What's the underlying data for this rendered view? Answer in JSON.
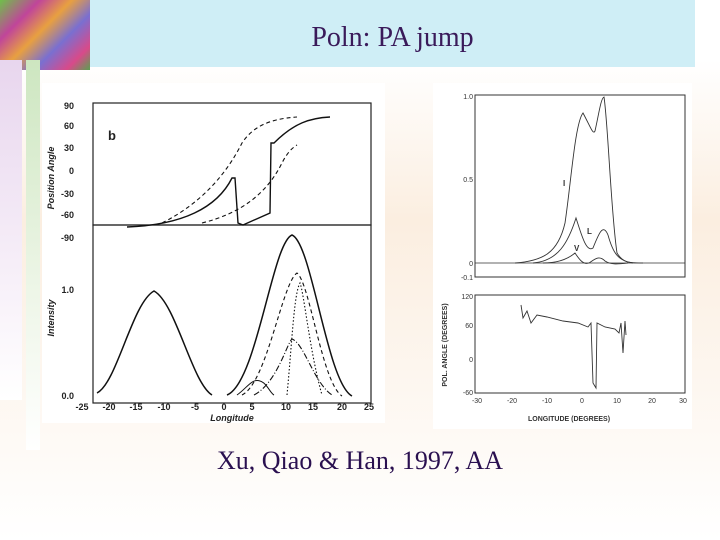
{
  "slide": {
    "title": "Poln: PA jump",
    "caption": "Xu, Qiao & Han, 1997, AA"
  },
  "figure_left": {
    "panel_label": "b",
    "ylabel_top": "Position Angle",
    "ylabel_bottom": "Intensity",
    "xlabel": "Longitude",
    "yticks_top": [
      "90",
      "60",
      "30",
      "0",
      "-30",
      "-60",
      "-90"
    ],
    "yticks_bottom": [
      "1.0",
      "0.0"
    ],
    "xticks": [
      "-25",
      "-20",
      "-15",
      "-10",
      "-5",
      "0",
      "5",
      "10",
      "15",
      "20",
      "25"
    ]
  },
  "figure_right": {
    "yticks_top": [
      "1.0",
      "0.5",
      "0",
      "-0.1"
    ],
    "curve_labels": [
      "I",
      "L",
      "V"
    ],
    "ylabel_bottom": "POL. ANGLE (DEGREES)",
    "yticks_bottom": [
      "120",
      "60",
      "0",
      "-60"
    ],
    "xlabel": "LONGITUDE (DEGREES)",
    "xticks": [
      "-30",
      "-20",
      "-10",
      "0",
      "10",
      "20",
      "30"
    ]
  },
  "colors": {
    "title_bg": "#cfeef6",
    "title_text": "#3a1a5a"
  }
}
